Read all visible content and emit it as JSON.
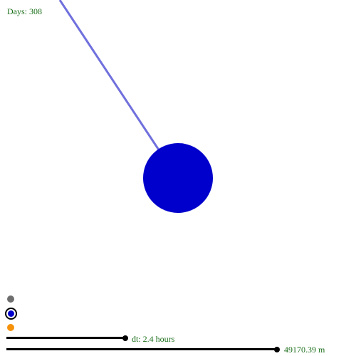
{
  "status": {
    "days_text": "Days: 308"
  },
  "controls": {
    "timestep_text": "dt: 2.4 hours",
    "scale_text": "49170.39 m"
  },
  "color_pickers": [
    {
      "name": "gray",
      "color": "#6e6e6e",
      "selected": false
    },
    {
      "name": "blue",
      "color": "#0000cc",
      "selected": true
    },
    {
      "name": "orange",
      "color": "#f5920a",
      "selected": false
    }
  ],
  "colors": {
    "text": "#1a6e1a",
    "body": "#0000cc",
    "tether": "#7070dd",
    "track": "#000000"
  }
}
